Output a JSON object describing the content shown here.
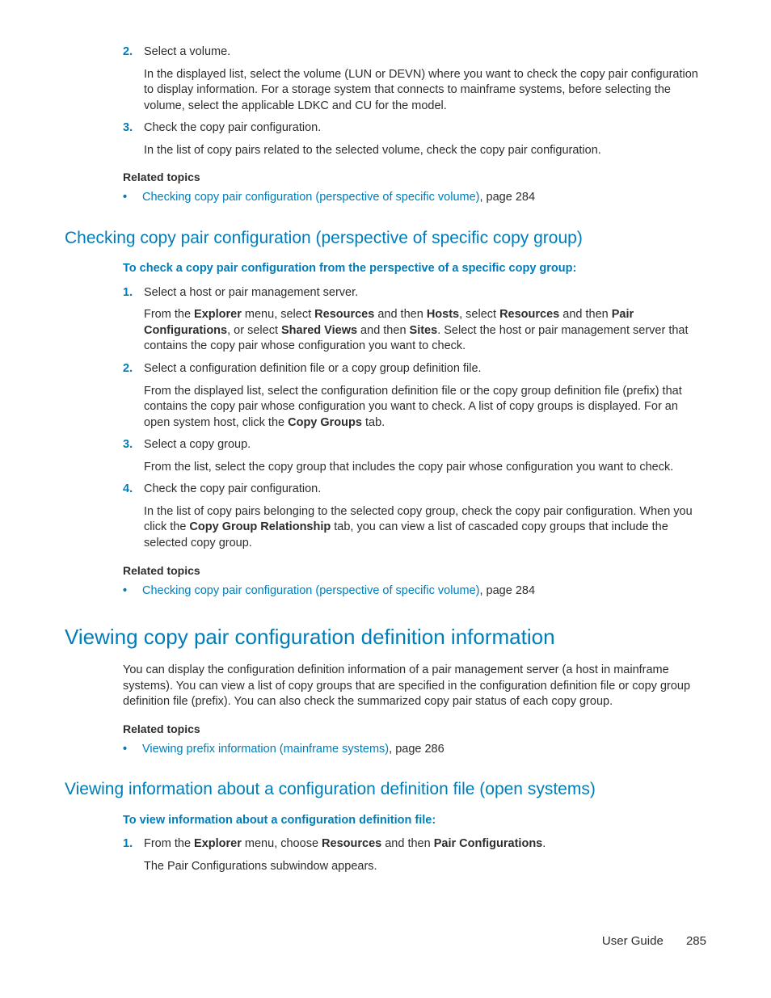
{
  "colors": {
    "accent": "#007db8",
    "text": "#2d2d2d",
    "background": "#ffffff"
  },
  "top_steps": {
    "step2": {
      "num": "2.",
      "title": "Select a volume.",
      "body": "In the displayed list, select the volume (LUN or DEVN) where you want to check the copy pair configuration to display information. For a storage system that connects to mainframe systems, before selecting the volume, select the applicable LDKC and CU for the model."
    },
    "step3": {
      "num": "3.",
      "title": "Check the copy pair configuration.",
      "body": "In the list of copy pairs related to the selected volume, check the copy pair configuration."
    }
  },
  "related1": {
    "heading": "Related topics",
    "link": "Checking copy pair configuration (perspective of specific volume)",
    "tail": ", page 284"
  },
  "sec1": {
    "heading": "Checking copy pair configuration (perspective of specific copy group)",
    "intro": "To check a copy pair configuration from the perspective of a specific copy group:",
    "step1": {
      "num": "1.",
      "title": "Select a host or pair management server.",
      "body_pre": "From the ",
      "b1": "Explorer",
      "t1": " menu, select ",
      "b2": "Resources",
      "t2": " and then ",
      "b3": "Hosts",
      "t3": ", select ",
      "b4": "Resources",
      "t4": " and then ",
      "b5": "Pair Configurations",
      "t5": ", or select ",
      "b6": "Shared Views",
      "t6": " and then ",
      "b7": "Sites",
      "t7": ". Select the host or pair management server that contains the copy pair whose configuration you want to check."
    },
    "step2": {
      "num": "2.",
      "title": "Select a configuration definition file or a copy group definition file.",
      "body_pre": "From the displayed list, select the configuration definition file or the copy group definition file (prefix) that contains the copy pair whose configuration you want to check. A list of copy groups is displayed. For an open system host, click the ",
      "b1": "Copy Groups",
      "body_post": " tab."
    },
    "step3": {
      "num": "3.",
      "title": "Select a copy group.",
      "body": "From the list, select the copy group that includes the copy pair whose configuration you want to check."
    },
    "step4": {
      "num": "4.",
      "title": "Check the copy pair configuration.",
      "body_pre": "In the list of copy pairs belonging to the selected copy group, check the copy pair configuration. When you click the ",
      "b1": "Copy Group Relationship",
      "body_post": " tab, you can view a list of cascaded copy groups that include the selected copy group."
    }
  },
  "related2": {
    "heading": "Related topics",
    "link": "Checking copy pair configuration (perspective of specific volume)",
    "tail": ", page 284"
  },
  "sec2": {
    "heading": "Viewing copy pair configuration definition information",
    "para": "You can display the configuration definition information of a pair management server (a host in mainframe systems). You can view a list of copy groups that are specified in the configuration definition file or copy group definition file (prefix). You can also check the summarized copy pair status of each copy group.",
    "related_heading": "Related topics",
    "related_link": "Viewing prefix information (mainframe systems)",
    "related_tail": ", page 286"
  },
  "sec3": {
    "heading": "Viewing information about a configuration definition file (open systems)",
    "intro": "To view information about a configuration definition file:",
    "step1": {
      "num": "1.",
      "pre": "From the ",
      "b1": "Explorer",
      "t1": " menu, choose ",
      "b2": "Resources",
      "t2": " and then ",
      "b3": "Pair Configurations",
      "t3": ".",
      "body": "The Pair Configurations subwindow appears."
    }
  },
  "footer": {
    "label": "User Guide",
    "page": "285"
  }
}
